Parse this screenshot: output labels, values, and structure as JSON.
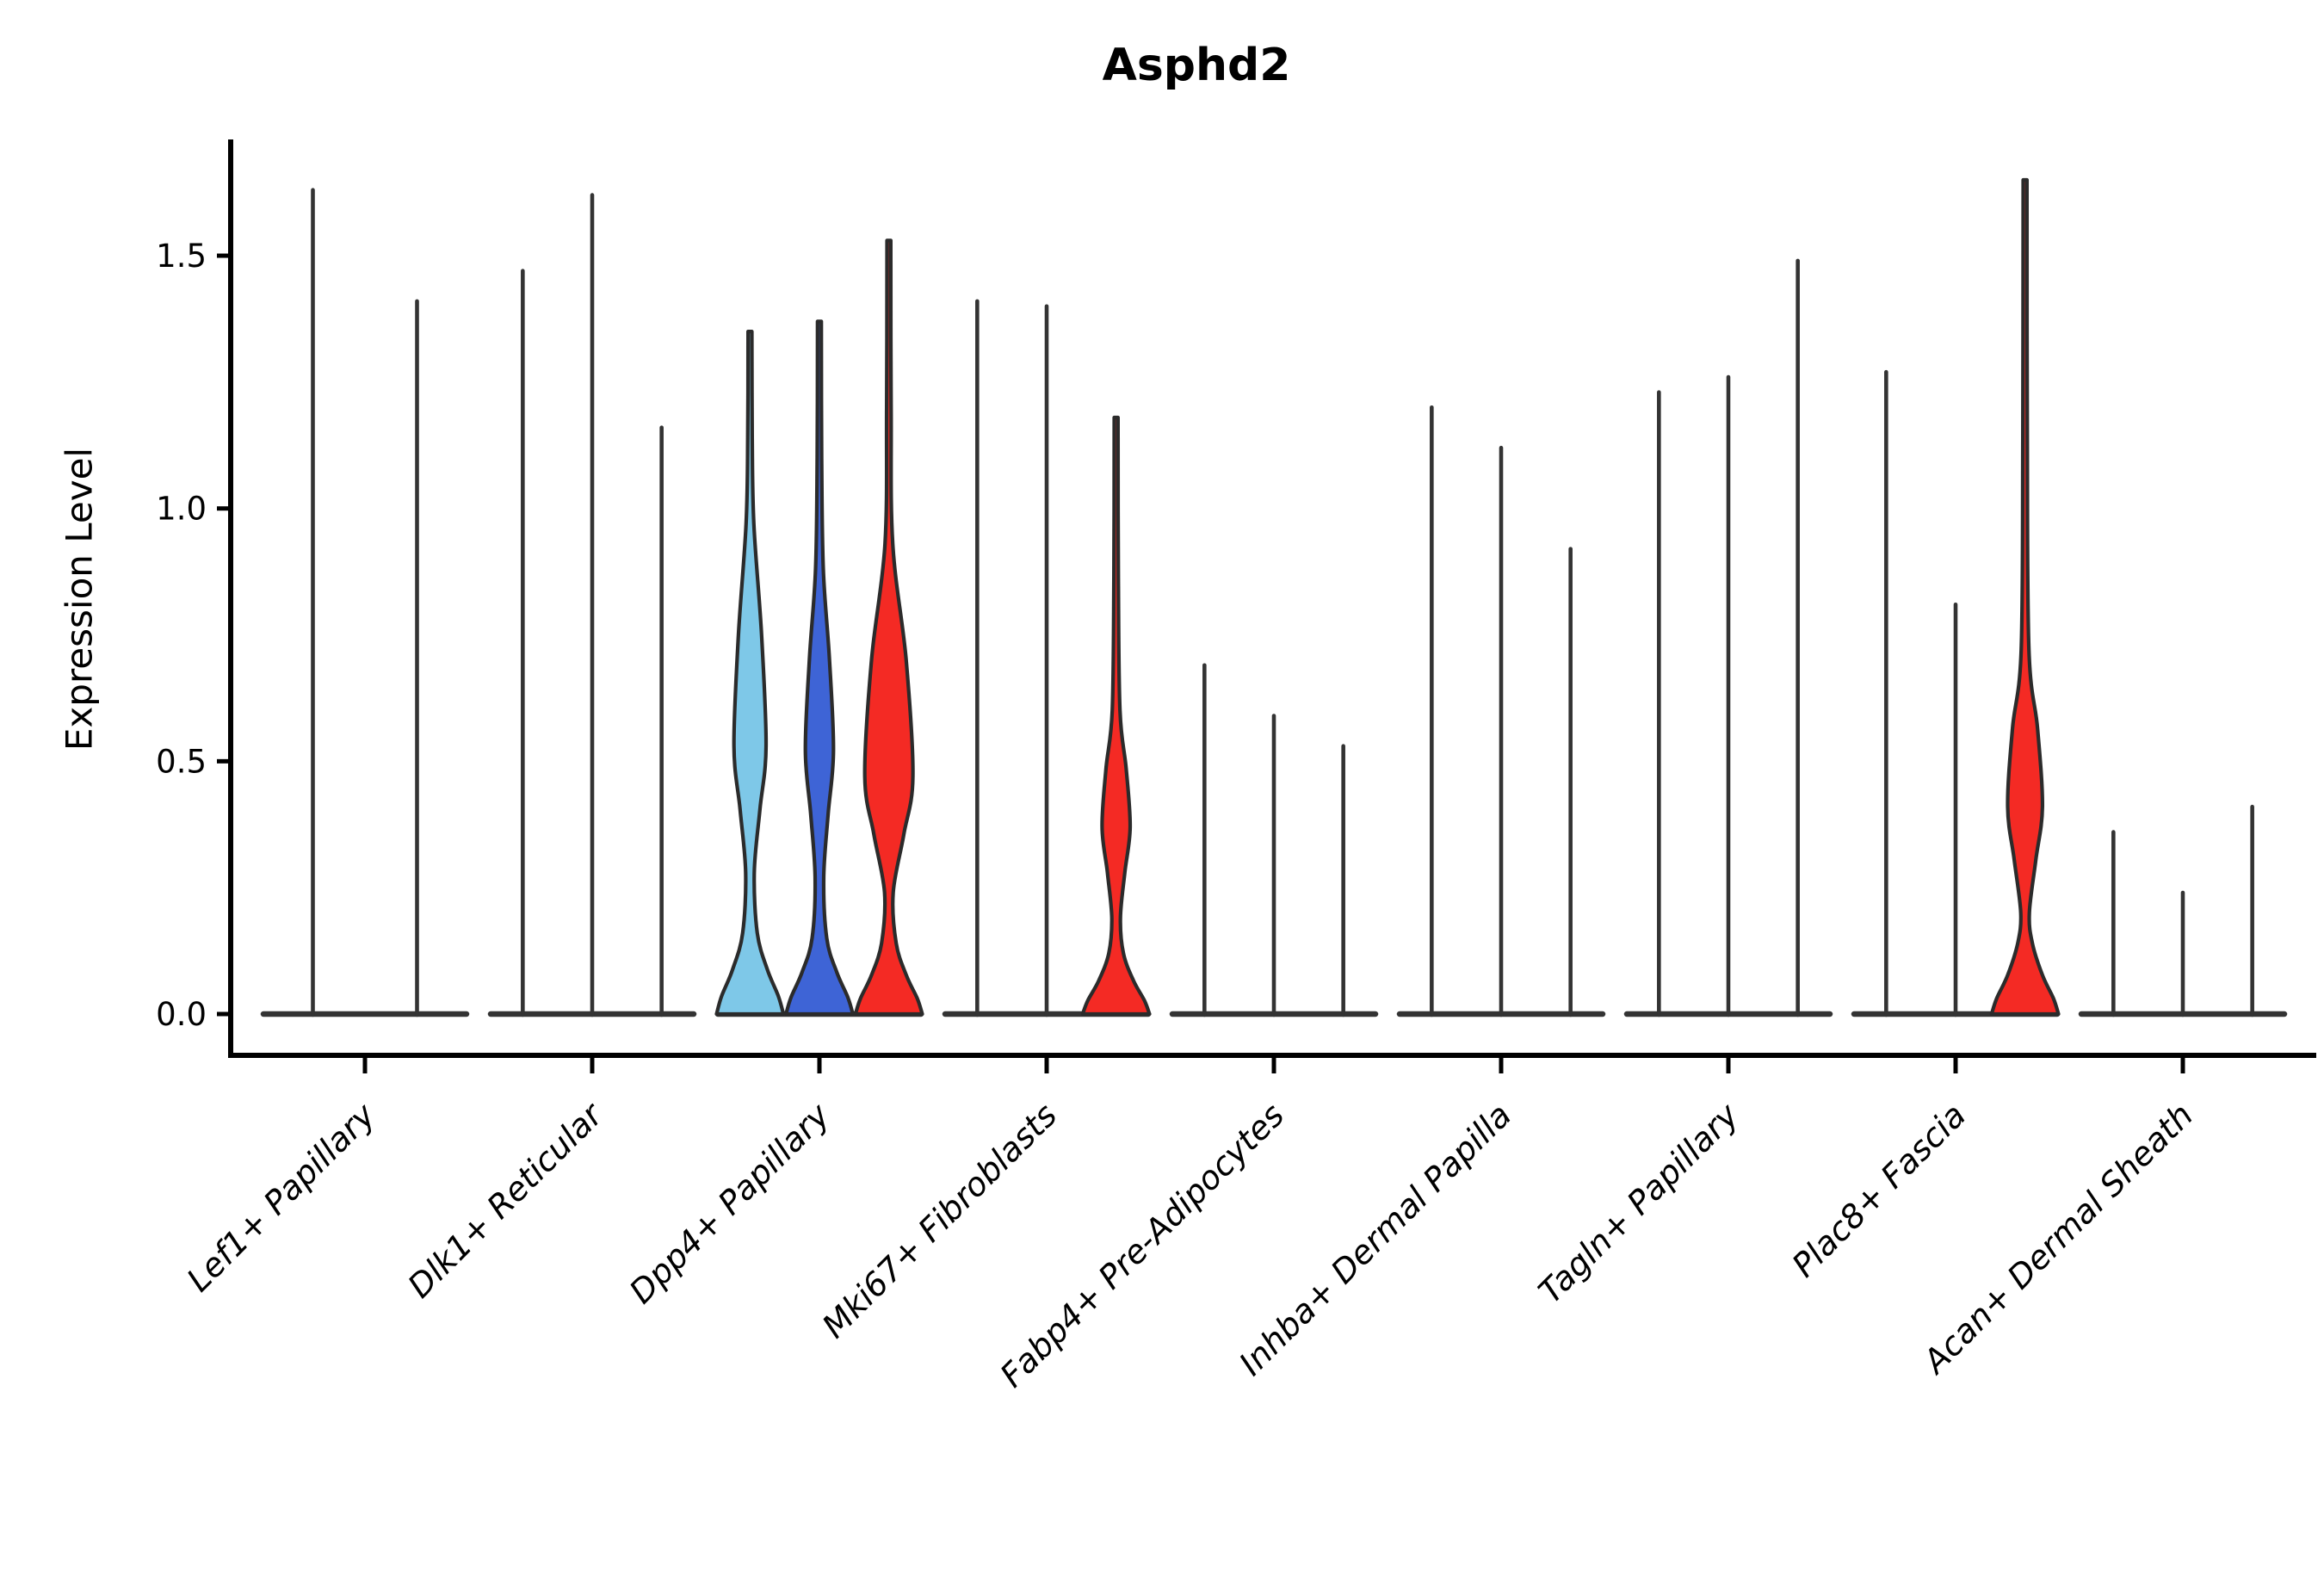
{
  "figure": {
    "title": "Asphd2",
    "ylabel": "Expression Level"
  },
  "chart_data": {
    "type": "violin",
    "title": "Asphd2",
    "xlabel": "",
    "ylabel": "Expression Level",
    "ylim": [
      -0.08,
      1.73
    ],
    "grid": "off",
    "legend": "none",
    "yticks": [
      {
        "label": "0.0",
        "value": 0.0
      },
      {
        "label": "0.5",
        "value": 0.5
      },
      {
        "label": "1.0",
        "value": 1.0
      },
      {
        "label": "1.5",
        "value": 1.5
      }
    ],
    "palette": {
      "light_blue": "#7EC8E8",
      "dark_blue": "#3E64D6",
      "red": "#F42A24",
      "outline": "#2B2B2B",
      "spike": "#333333",
      "axis": "#000000"
    },
    "categories": [
      {
        "label": "Lef1+ Papillary",
        "violins": [
          {
            "type": "spike",
            "max": 1.63
          },
          {
            "type": "spike",
            "max": 1.41
          }
        ]
      },
      {
        "label": "Dlk1+ Reticular",
        "violins": [
          {
            "type": "spike",
            "max": 1.47
          },
          {
            "type": "spike",
            "max": 1.62
          },
          {
            "type": "spike",
            "max": 1.16
          }
        ]
      },
      {
        "label": "Dpp4+ Papillary",
        "violins": [
          {
            "type": "violin",
            "max": 1.35,
            "color": "light_blue",
            "bulge_top": 0.97,
            "bulge_peak": 0.53,
            "bulge_peak_hw": 0.48,
            "waist": 0.28,
            "base_top": 0.16
          },
          {
            "type": "violin",
            "max": 1.37,
            "color": "dark_blue",
            "bulge_top": 0.88,
            "bulge_peak": 0.52,
            "bulge_peak_hw": 0.42,
            "waist": 0.27,
            "base_top": 0.15
          },
          {
            "type": "violin",
            "max": 1.53,
            "color": "red",
            "bulge_top": 0.93,
            "bulge_peak": 0.47,
            "bulge_peak_hw": 0.72,
            "waist": 0.24,
            "base_top": 0.14
          }
        ]
      },
      {
        "label": "Mki67+ Fibroblasts",
        "violins": [
          {
            "type": "spike",
            "max": 1.41
          },
          {
            "type": "spike",
            "max": 1.4
          },
          {
            "type": "violin",
            "max": 1.18,
            "color": "red",
            "bulge_top": 0.6,
            "bulge_peak": 0.37,
            "bulge_peak_hw": 0.42,
            "waist": 0.19,
            "base_top": 0.12
          }
        ]
      },
      {
        "label": "Fabp4+ Pre-Adipocytes",
        "violins": [
          {
            "type": "spike",
            "max": 0.69
          },
          {
            "type": "spike",
            "max": 0.59
          },
          {
            "type": "spike",
            "max": 0.53
          }
        ]
      },
      {
        "label": "Inhba+ Dermal Papilla",
        "violins": [
          {
            "type": "spike",
            "max": 1.2
          },
          {
            "type": "spike",
            "max": 1.12
          },
          {
            "type": "spike",
            "max": 0.92
          }
        ]
      },
      {
        "label": "Tagln+ Papillary",
        "violins": [
          {
            "type": "spike",
            "max": 1.23
          },
          {
            "type": "spike",
            "max": 1.26
          },
          {
            "type": "spike",
            "max": 1.49
          }
        ]
      },
      {
        "label": "Plac8+ Fascia",
        "violins": [
          {
            "type": "spike",
            "max": 1.27
          },
          {
            "type": "spike",
            "max": 0.81
          },
          {
            "type": "violin",
            "max": 1.65,
            "color": "red",
            "bulge_top": 0.72,
            "bulge_peak": 0.41,
            "bulge_peak_hw": 0.52,
            "waist": 0.2,
            "base_top": 0.14
          }
        ]
      },
      {
        "label": "Acan+ Dermal Sheath",
        "violins": [
          {
            "type": "spike",
            "max": 0.36
          },
          {
            "type": "spike",
            "max": 0.24
          },
          {
            "type": "spike",
            "max": 0.41
          }
        ]
      }
    ]
  }
}
